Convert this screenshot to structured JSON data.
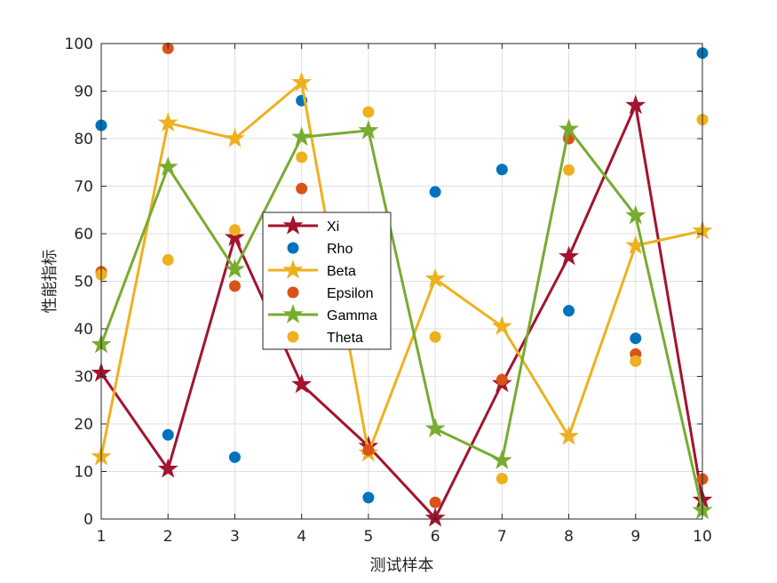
{
  "chart_data": {
    "type": "line",
    "title": "",
    "xlabel": "测试样本",
    "ylabel": "性能指标",
    "xlim": [
      1,
      10
    ],
    "ylim": [
      0,
      100
    ],
    "xticks": [
      "1",
      "2",
      "3",
      "4",
      "5",
      "6",
      "7",
      "8",
      "9",
      "10"
    ],
    "yticks": [
      "0",
      "10",
      "20",
      "30",
      "40",
      "50",
      "60",
      "70",
      "80",
      "90",
      "100"
    ],
    "grid": true,
    "legend_position": "center",
    "x": [
      1,
      2,
      3,
      4,
      5,
      6,
      7,
      8,
      9,
      10
    ],
    "series": [
      {
        "name": "Xi",
        "style": "line-star",
        "color": "#A2142F",
        "values": [
          30.7,
          10.5,
          59.2,
          28.3,
          15.3,
          0.2,
          28.5,
          55.2,
          87.0,
          4.0
        ]
      },
      {
        "name": "Rho",
        "style": "scatter-dot",
        "color": "#0072BD",
        "values": [
          82.8,
          17.7,
          13.0,
          88.0,
          4.5,
          68.8,
          73.5,
          43.8,
          38.0,
          98.0
        ]
      },
      {
        "name": "Beta",
        "style": "line-star",
        "color": "#EDB120",
        "values": [
          13.1,
          83.3,
          80.0,
          91.8,
          13.9,
          50.5,
          40.5,
          17.4,
          57.5,
          60.6
        ]
      },
      {
        "name": "Epsilon",
        "style": "scatter-dot",
        "color": "#D95319",
        "values": [
          52.0,
          99.0,
          49.0,
          69.5,
          14.5,
          3.5,
          29.3,
          80.0,
          34.7,
          8.4
        ]
      },
      {
        "name": "Gamma",
        "style": "line-star",
        "color": "#77AC30",
        "values": [
          36.7,
          74.0,
          52.5,
          80.3,
          81.7,
          19.0,
          12.3,
          82.0,
          63.8,
          1.8
        ]
      },
      {
        "name": "Theta",
        "style": "scatter-dot",
        "color": "#EDB120",
        "values": [
          51.4,
          54.5,
          60.8,
          76.1,
          85.6,
          38.3,
          8.5,
          73.4,
          33.2,
          84.0
        ]
      }
    ]
  }
}
